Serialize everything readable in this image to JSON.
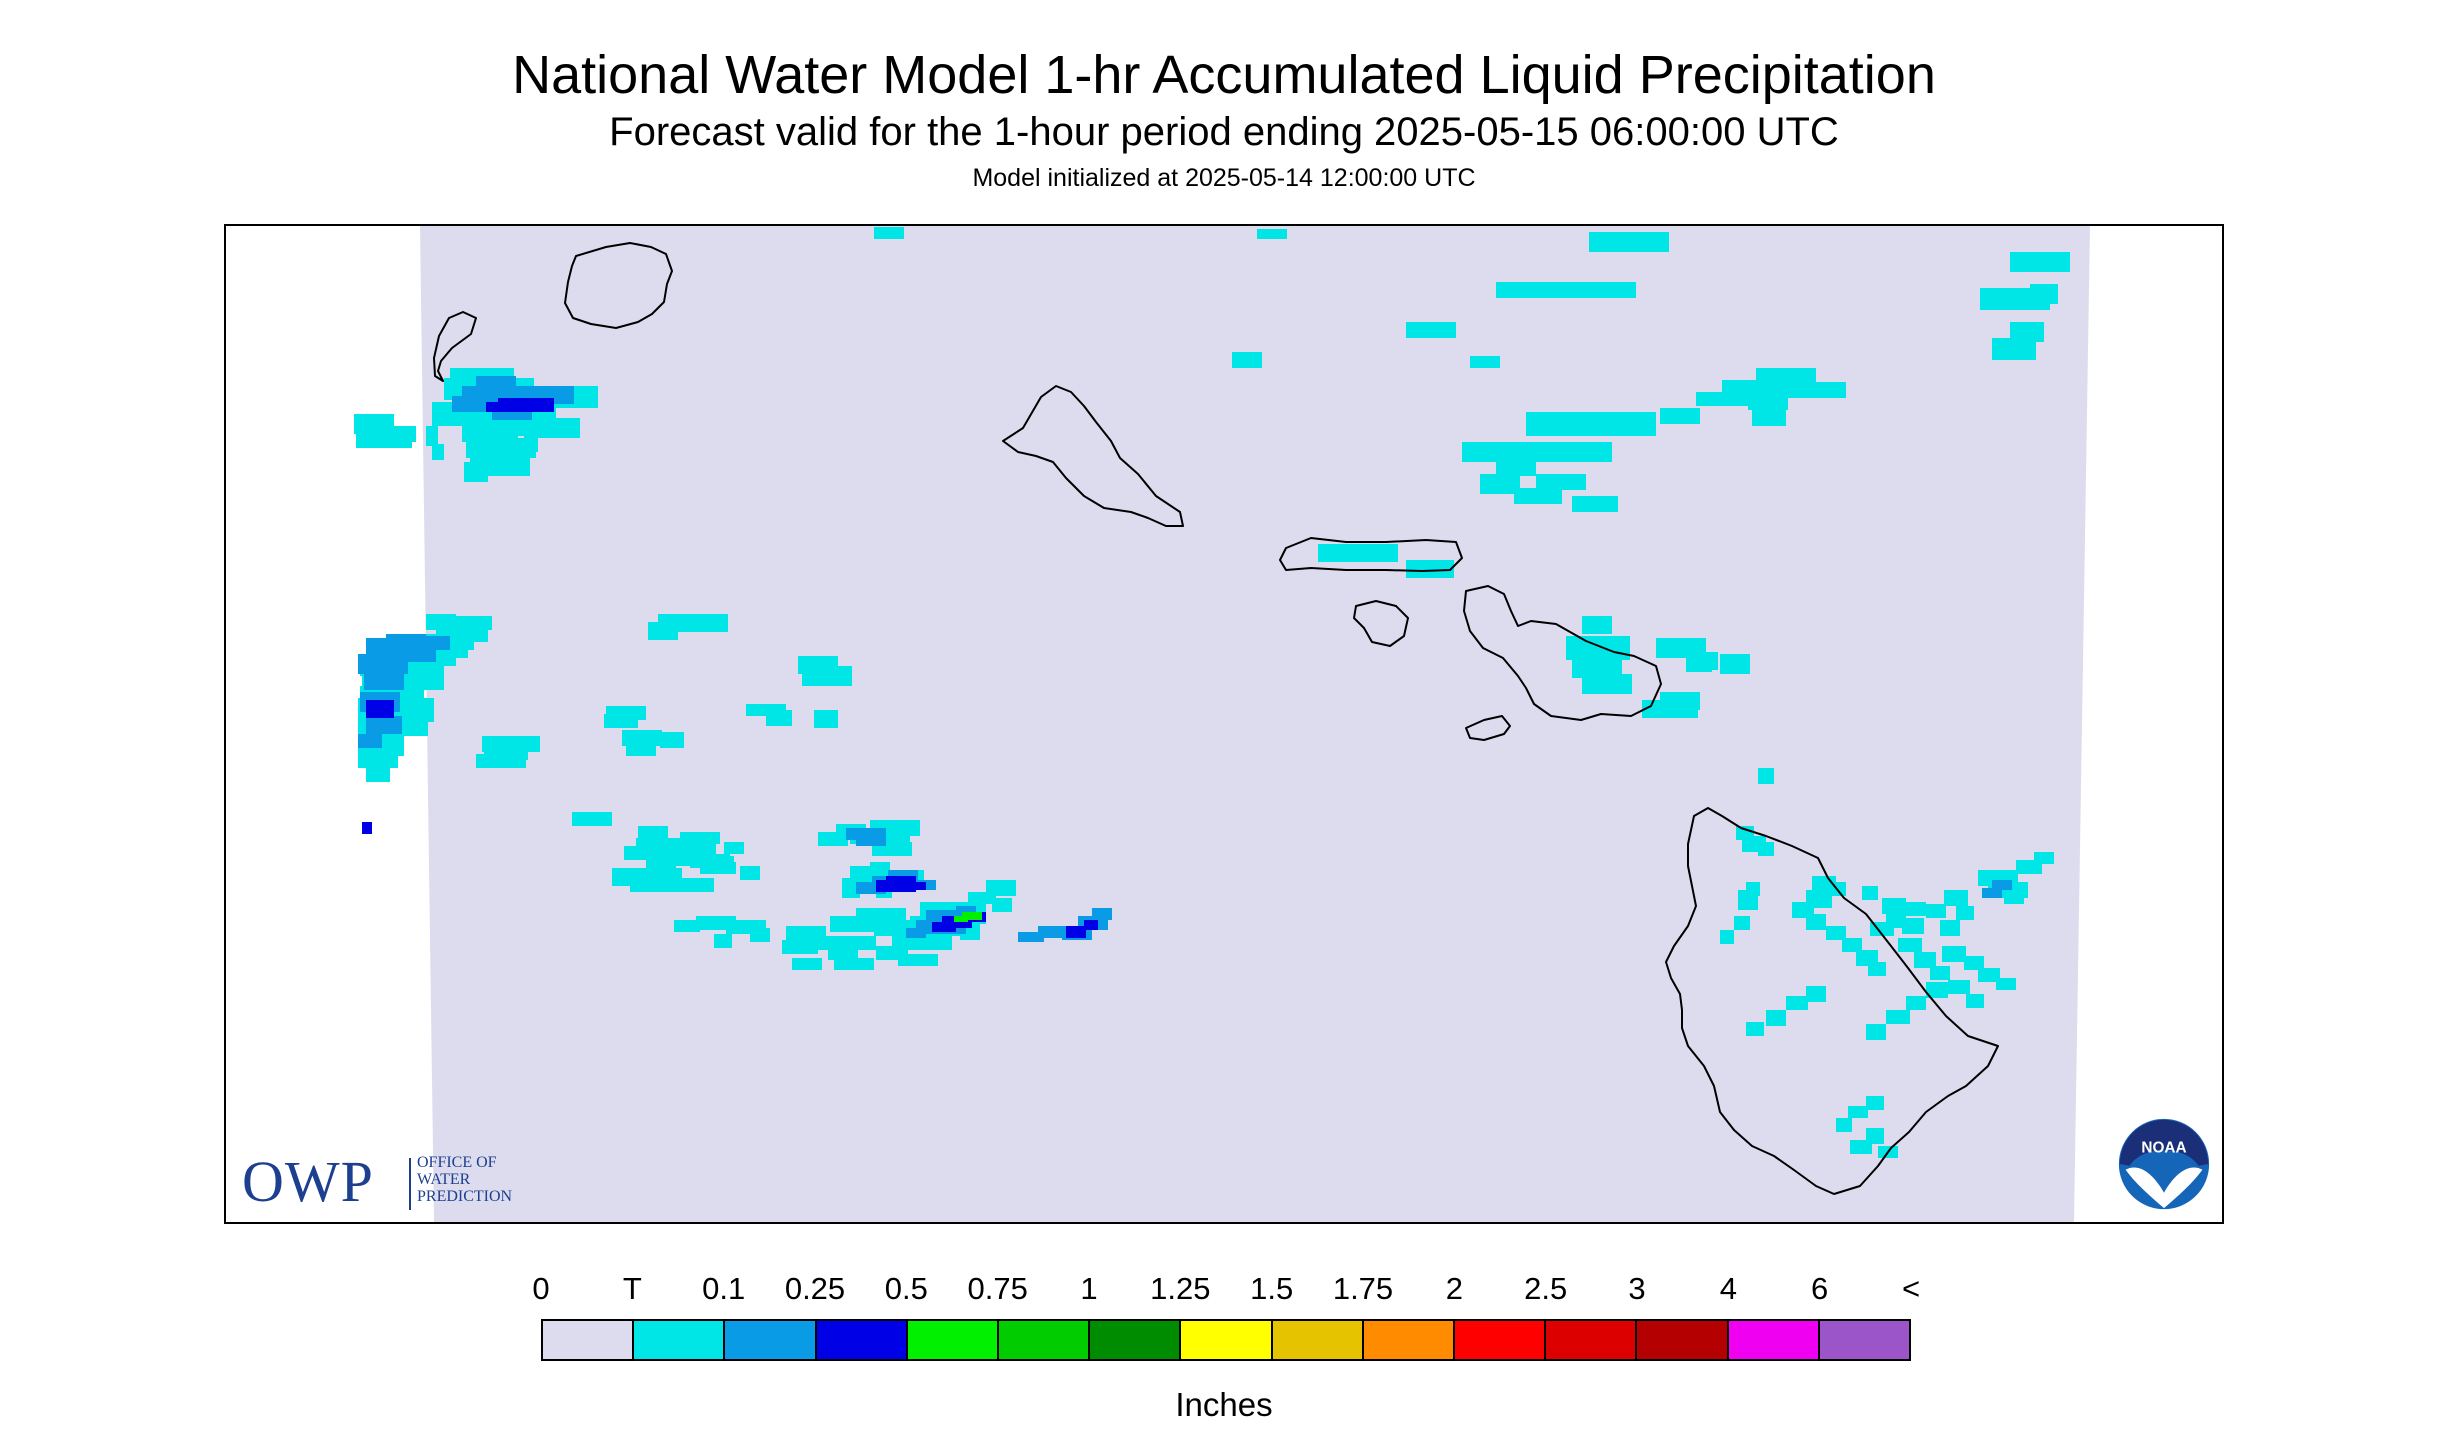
{
  "title": "National Water Model 1-hr Accumulated Liquid Precipitation",
  "subtitle": "Forecast valid for the 1-hour period ending 2025-05-15 06:00:00 UTC",
  "init_text": "Model initialized at 2025-05-14 12:00:00 UTC",
  "units": "Inches",
  "owp": {
    "letters": "OWP",
    "name_line1": "OFFICE OF",
    "name_line2": "WATER",
    "name_line3": "PREDICTION"
  },
  "noaa": {
    "text": "NOAA"
  },
  "legend": {
    "labels": [
      "0",
      "T",
      "0.1",
      "0.25",
      "0.5",
      "0.75",
      "1",
      "1.25",
      "1.5",
      "1.75",
      "2",
      "2.5",
      "3",
      "4",
      "6",
      "<"
    ],
    "colors": [
      "#dcdcee",
      "#00e6e6",
      "#0a9be6",
      "#0000e6",
      "#00f000",
      "#00cc00",
      "#008c00",
      "#ffff00",
      "#e6c300",
      "#ff8c00",
      "#ff0000",
      "#dc0000",
      "#b40000",
      "#f000f0",
      "#9b55c8"
    ]
  },
  "map": {
    "background_color": "#dcdcee",
    "islands": [
      "Niihau",
      "Kauai",
      "Oahu",
      "Molokai",
      "Lanai",
      "Maui",
      "Kahoolawe",
      "Hawaii"
    ]
  }
}
